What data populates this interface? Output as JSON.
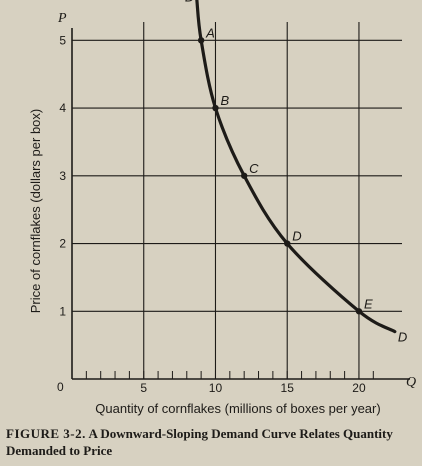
{
  "chart_data": {
    "type": "line",
    "ylabel": "Price of cornflakes (dollars per box)",
    "xlabel": "Quantity of cornflakes (millions of boxes per year)",
    "y_axis_letter": "P",
    "x_axis_letter": "Q",
    "origin_label": "0",
    "xlim": [
      0,
      23
    ],
    "ylim": [
      0,
      5.3
    ],
    "x_ticks": [
      "5",
      "10",
      "15",
      "20"
    ],
    "y_ticks": [
      "1",
      "2",
      "3",
      "4",
      "5"
    ],
    "grid": true,
    "series": [
      {
        "curve_labels": [
          "D",
          "D"
        ],
        "points": [
          {
            "label": "A",
            "x": 9,
            "y": 5
          },
          {
            "label": "B",
            "x": 10,
            "y": 4
          },
          {
            "label": "C",
            "x": 12,
            "y": 3
          },
          {
            "label": "D",
            "x": 15,
            "y": 2
          },
          {
            "label": "E",
            "x": 20,
            "y": 1
          }
        ],
        "curve_start": {
          "x": 8.7,
          "y": 5.6
        },
        "curve_end": {
          "x": 22.5,
          "y": 0.7
        }
      }
    ]
  },
  "caption": {
    "label": "FIGURE 3-2.",
    "title": "A Downward-Sloping Demand Curve Relates Quantity Demanded to Price"
  },
  "colors": {
    "background": "#d7d1c1",
    "ink": "#1d1b18"
  }
}
